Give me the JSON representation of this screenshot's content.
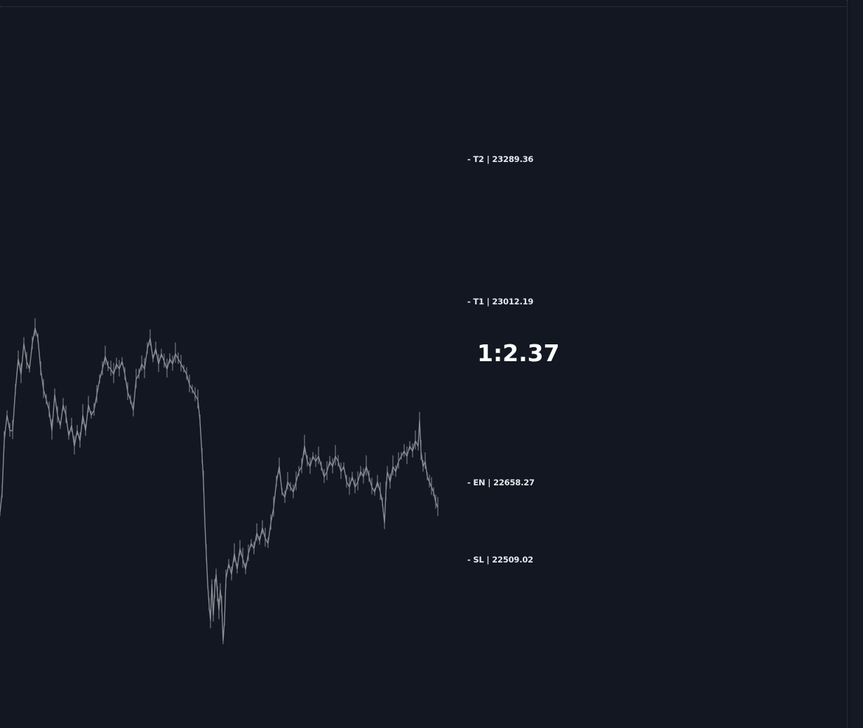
{
  "chart_data": {
    "type": "line",
    "series_color": "#8a8d95",
    "background": "#131722",
    "ylim": [
      22180,
      23600
    ],
    "levels": [
      {
        "name": "T2",
        "price": 23289.36,
        "label": "- T2 | 23289.36"
      },
      {
        "name": "T1",
        "price": 23012.19,
        "label": "- T1 | 23012.19"
      },
      {
        "name": "EN",
        "price": 22658.27,
        "label": "- EN | 22658.27"
      },
      {
        "name": "SL",
        "price": 22509.02,
        "label": "- SL | 22509.02"
      }
    ],
    "risk_reward": "1:2.37",
    "price_path": [
      [
        0,
        22600
      ],
      [
        3,
        22640
      ],
      [
        6,
        22740
      ],
      [
        10,
        22790
      ],
      [
        14,
        22760
      ],
      [
        18,
        22760
      ],
      [
        22,
        22840
      ],
      [
        26,
        22900
      ],
      [
        30,
        22870
      ],
      [
        34,
        22930
      ],
      [
        38,
        22895
      ],
      [
        42,
        22880
      ],
      [
        46,
        22930
      ],
      [
        50,
        22960
      ],
      [
        54,
        22940
      ],
      [
        58,
        22880
      ],
      [
        62,
        22840
      ],
      [
        66,
        22820
      ],
      [
        70,
        22800
      ],
      [
        74,
        22760
      ],
      [
        78,
        22830
      ],
      [
        82,
        22790
      ],
      [
        86,
        22770
      ],
      [
        90,
        22810
      ],
      [
        94,
        22790
      ],
      [
        98,
        22750
      ],
      [
        102,
        22770
      ],
      [
        106,
        22730
      ],
      [
        110,
        22760
      ],
      [
        114,
        22740
      ],
      [
        118,
        22790
      ],
      [
        122,
        22760
      ],
      [
        126,
        22810
      ],
      [
        130,
        22790
      ],
      [
        134,
        22800
      ],
      [
        138,
        22830
      ],
      [
        142,
        22860
      ],
      [
        146,
        22880
      ],
      [
        150,
        22905
      ],
      [
        154,
        22885
      ],
      [
        158,
        22880
      ],
      [
        162,
        22870
      ],
      [
        166,
        22890
      ],
      [
        170,
        22880
      ],
      [
        174,
        22895
      ],
      [
        178,
        22870
      ],
      [
        182,
        22835
      ],
      [
        186,
        22820
      ],
      [
        190,
        22800
      ],
      [
        194,
        22860
      ],
      [
        198,
        22870
      ],
      [
        202,
        22890
      ],
      [
        206,
        22880
      ],
      [
        210,
        22920
      ],
      [
        214,
        22940
      ],
      [
        218,
        22900
      ],
      [
        222,
        22920
      ],
      [
        226,
        22890
      ],
      [
        230,
        22910
      ],
      [
        234,
        22895
      ],
      [
        238,
        22880
      ],
      [
        242,
        22900
      ],
      [
        246,
        22890
      ],
      [
        250,
        22910
      ],
      [
        254,
        22900
      ],
      [
        258,
        22890
      ],
      [
        262,
        22880
      ],
      [
        266,
        22870
      ],
      [
        270,
        22850
      ],
      [
        274,
        22840
      ],
      [
        278,
        22830
      ],
      [
        282,
        22820
      ],
      [
        285,
        22780
      ],
      [
        288,
        22710
      ],
      [
        290,
        22660
      ],
      [
        292,
        22580
      ],
      [
        294,
        22520
      ],
      [
        296,
        22460
      ],
      [
        298,
        22420
      ],
      [
        300,
        22390
      ],
      [
        302,
        22460
      ],
      [
        304,
        22400
      ],
      [
        306,
        22450
      ],
      [
        308,
        22480
      ],
      [
        310,
        22440
      ],
      [
        312,
        22410
      ],
      [
        314,
        22450
      ],
      [
        316,
        22420
      ],
      [
        318,
        22350
      ],
      [
        320,
        22390
      ],
      [
        322,
        22470
      ],
      [
        326,
        22500
      ],
      [
        330,
        22480
      ],
      [
        334,
        22520
      ],
      [
        338,
        22490
      ],
      [
        342,
        22530
      ],
      [
        346,
        22510
      ],
      [
        350,
        22490
      ],
      [
        354,
        22520
      ],
      [
        358,
        22540
      ],
      [
        362,
        22530
      ],
      [
        366,
        22560
      ],
      [
        370,
        22545
      ],
      [
        374,
        22570
      ],
      [
        378,
        22550
      ],
      [
        382,
        22540
      ],
      [
        386,
        22580
      ],
      [
        390,
        22610
      ],
      [
        394,
        22660
      ],
      [
        398,
        22690
      ],
      [
        402,
        22640
      ],
      [
        406,
        22630
      ],
      [
        410,
        22660
      ],
      [
        414,
        22650
      ],
      [
        418,
        22640
      ],
      [
        422,
        22660
      ],
      [
        426,
        22680
      ],
      [
        430,
        22690
      ],
      [
        434,
        22730
      ],
      [
        438,
        22700
      ],
      [
        442,
        22690
      ],
      [
        446,
        22710
      ],
      [
        450,
        22700
      ],
      [
        454,
        22710
      ],
      [
        458,
        22690
      ],
      [
        462,
        22670
      ],
      [
        466,
        22680
      ],
      [
        470,
        22700
      ],
      [
        474,
        22690
      ],
      [
        478,
        22710
      ],
      [
        482,
        22700
      ],
      [
        486,
        22680
      ],
      [
        490,
        22690
      ],
      [
        494,
        22660
      ],
      [
        498,
        22650
      ],
      [
        502,
        22670
      ],
      [
        506,
        22650
      ],
      [
        510,
        22660
      ],
      [
        514,
        22680
      ],
      [
        518,
        22670
      ],
      [
        522,
        22690
      ],
      [
        526,
        22670
      ],
      [
        530,
        22650
      ],
      [
        534,
        22640
      ],
      [
        538,
        22660
      ],
      [
        542,
        22640
      ],
      [
        545,
        22620
      ],
      [
        548,
        22580
      ],
      [
        550,
        22640
      ],
      [
        552,
        22680
      ],
      [
        556,
        22660
      ],
      [
        560,
        22690
      ],
      [
        564,
        22680
      ],
      [
        568,
        22700
      ],
      [
        572,
        22710
      ],
      [
        576,
        22720
      ],
      [
        580,
        22710
      ],
      [
        584,
        22730
      ],
      [
        588,
        22720
      ],
      [
        592,
        22740
      ],
      [
        596,
        22730
      ],
      [
        598,
        22780
      ],
      [
        600,
        22720
      ],
      [
        603,
        22690
      ],
      [
        606,
        22700
      ],
      [
        609,
        22670
      ],
      [
        612,
        22660
      ],
      [
        615,
        22650
      ],
      [
        618,
        22640
      ],
      [
        621,
        22620
      ],
      [
        624,
        22610
      ]
    ]
  }
}
